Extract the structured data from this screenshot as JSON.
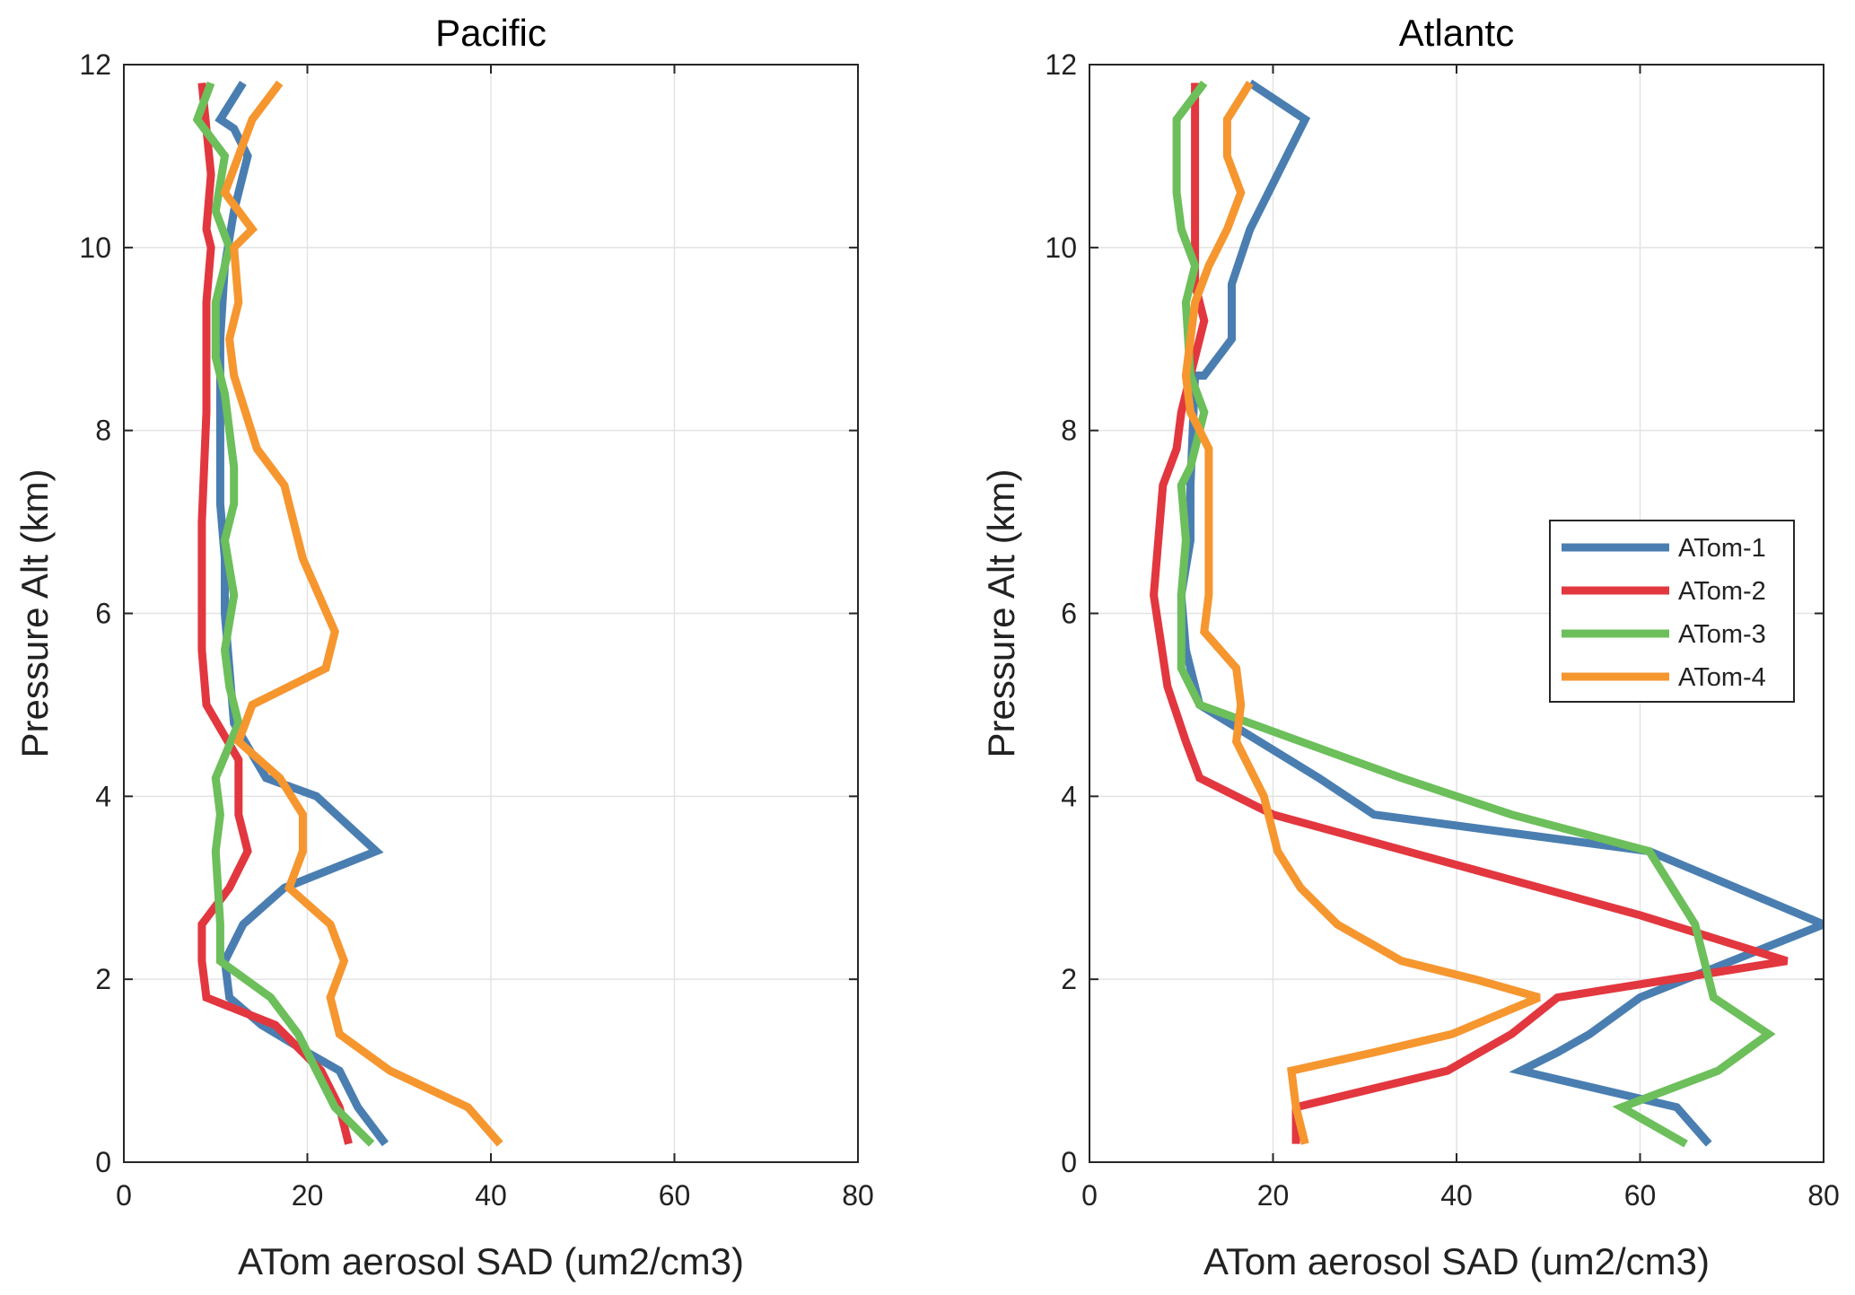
{
  "chart_data": [
    {
      "type": "line",
      "title": "Pacific",
      "xlabel": "ATom aerosol SAD (um2/cm3)",
      "ylabel": "Pressure Alt (km)",
      "xlim": [
        0,
        80
      ],
      "ylim": [
        0,
        12
      ],
      "xticks": [
        0,
        20,
        40,
        60,
        80
      ],
      "yticks": [
        0,
        2,
        4,
        6,
        8,
        10,
        12
      ],
      "grid": true,
      "series": [
        {
          "name": "ATom-1",
          "color": "#4a7eb1",
          "points": [
            [
              28.5,
              0.2
            ],
            [
              25.5,
              0.6
            ],
            [
              23.5,
              1.0
            ],
            [
              20,
              1.2
            ],
            [
              15,
              1.5
            ],
            [
              11.5,
              1.8
            ],
            [
              11,
              2.2
            ],
            [
              13,
              2.6
            ],
            [
              17.5,
              3.0
            ],
            [
              27.5,
              3.4
            ],
            [
              21,
              4.0
            ],
            [
              15.5,
              4.2
            ],
            [
              12,
              4.8
            ],
            [
              11.5,
              5.4
            ],
            [
              11,
              6.0
            ],
            [
              11,
              6.6
            ],
            [
              10.5,
              7.2
            ],
            [
              10.5,
              8.2
            ],
            [
              10.5,
              9.0
            ],
            [
              11,
              9.8
            ],
            [
              12,
              10.4
            ],
            [
              13.5,
              11.0
            ],
            [
              12,
              11.3
            ],
            [
              10.5,
              11.4
            ],
            [
              13,
              11.8
            ]
          ]
        },
        {
          "name": "ATom-2",
          "color": "#e2373f",
          "points": [
            [
              24.5,
              0.2
            ],
            [
              23.5,
              0.6
            ],
            [
              21.5,
              1.0
            ],
            [
              16.5,
              1.5
            ],
            [
              9,
              1.8
            ],
            [
              8.5,
              2.2
            ],
            [
              8.5,
              2.6
            ],
            [
              11.5,
              3.0
            ],
            [
              13.5,
              3.4
            ],
            [
              12.5,
              3.8
            ],
            [
              12.5,
              4.4
            ],
            [
              9,
              5.0
            ],
            [
              8.5,
              5.6
            ],
            [
              8.5,
              6.2
            ],
            [
              8.5,
              7.0
            ],
            [
              9,
              8.2
            ],
            [
              9,
              9.4
            ],
            [
              9.5,
              10.0
            ],
            [
              9,
              10.2
            ],
            [
              9.5,
              10.8
            ],
            [
              8.5,
              11.8
            ]
          ]
        },
        {
          "name": "ATom-3",
          "color": "#6cbf5a",
          "points": [
            [
              27,
              0.2
            ],
            [
              23,
              0.6
            ],
            [
              21,
              1.0
            ],
            [
              19,
              1.4
            ],
            [
              16,
              1.8
            ],
            [
              10.5,
              2.2
            ],
            [
              10.5,
              2.6
            ],
            [
              10,
              3.4
            ],
            [
              10.5,
              3.8
            ],
            [
              10,
              4.2
            ],
            [
              12.5,
              4.8
            ],
            [
              11.5,
              5.2
            ],
            [
              11,
              5.6
            ],
            [
              12,
              6.2
            ],
            [
              11,
              6.8
            ],
            [
              12,
              7.2
            ],
            [
              12,
              7.6
            ],
            [
              11,
              8.4
            ],
            [
              10,
              8.8
            ],
            [
              10,
              9.4
            ],
            [
              11,
              9.8
            ],
            [
              11.5,
              10.0
            ],
            [
              10,
              10.4
            ],
            [
              11,
              11.0
            ],
            [
              8,
              11.4
            ],
            [
              9.5,
              11.8
            ]
          ]
        },
        {
          "name": "ATom-4",
          "color": "#f6962f",
          "points": [
            [
              41,
              0.2
            ],
            [
              37.5,
              0.6
            ],
            [
              29,
              1.0
            ],
            [
              23.5,
              1.4
            ],
            [
              22.5,
              1.8
            ],
            [
              24,
              2.2
            ],
            [
              22.5,
              2.6
            ],
            [
              18,
              3.0
            ],
            [
              19.5,
              3.4
            ],
            [
              19.5,
              3.8
            ],
            [
              17,
              4.2
            ],
            [
              12.5,
              4.6
            ],
            [
              14,
              5.0
            ],
            [
              22,
              5.4
            ],
            [
              23,
              5.8
            ],
            [
              19.5,
              6.6
            ],
            [
              17.5,
              7.4
            ],
            [
              14.5,
              7.8
            ],
            [
              12,
              8.6
            ],
            [
              11.5,
              9.0
            ],
            [
              12.5,
              9.4
            ],
            [
              12,
              10.0
            ],
            [
              14,
              10.2
            ],
            [
              11,
              10.6
            ],
            [
              12.5,
              11.0
            ],
            [
              14,
              11.4
            ],
            [
              17,
              11.8
            ]
          ]
        }
      ]
    },
    {
      "type": "line",
      "title": "Atlantc",
      "xlabel": "ATom aerosol SAD (um2/cm3)",
      "ylabel": "Pressure Alt (km)",
      "xlim": [
        0,
        80
      ],
      "ylim": [
        0,
        12
      ],
      "xticks": [
        0,
        20,
        40,
        60,
        80
      ],
      "yticks": [
        0,
        2,
        4,
        6,
        8,
        10,
        12
      ],
      "grid": true,
      "legend": {
        "position": "right",
        "entries": [
          "ATom-1",
          "ATom-2",
          "ATom-3",
          "ATom-4"
        ]
      },
      "series": [
        {
          "name": "ATom-1",
          "color": "#4a7eb1",
          "points": [
            [
              67.5,
              0.2
            ],
            [
              64,
              0.6
            ],
            [
              47,
              1.0
            ],
            [
              51,
              1.2
            ],
            [
              54.5,
              1.4
            ],
            [
              60,
              1.8
            ],
            [
              80,
              2.6
            ],
            [
              61,
              3.4
            ],
            [
              31,
              3.8
            ],
            [
              25,
              4.2
            ],
            [
              12,
              5.0
            ],
            [
              10.5,
              5.6
            ],
            [
              10,
              6.2
            ],
            [
              11,
              6.8
            ],
            [
              11,
              7.4
            ],
            [
              11.5,
              8.6
            ],
            [
              12.5,
              8.6
            ],
            [
              15.5,
              9.0
            ],
            [
              15.5,
              9.6
            ],
            [
              17.5,
              10.2
            ],
            [
              19.5,
              10.6
            ],
            [
              21.5,
              11.0
            ],
            [
              23.5,
              11.4
            ],
            [
              17.5,
              11.8
            ]
          ]
        },
        {
          "name": "ATom-2",
          "color": "#e2373f",
          "points": [
            [
              22.5,
              0.2
            ],
            [
              22.5,
              0.6
            ],
            [
              39,
              1.0
            ],
            [
              46,
              1.4
            ],
            [
              51,
              1.8
            ],
            [
              76,
              2.2
            ],
            [
              60,
              2.7
            ],
            [
              20,
              3.8
            ],
            [
              12,
              4.2
            ],
            [
              10.5,
              4.6
            ],
            [
              8.5,
              5.2
            ],
            [
              7,
              6.2
            ],
            [
              8,
              7.4
            ],
            [
              9.5,
              7.8
            ],
            [
              10,
              8.2
            ],
            [
              11,
              8.6
            ],
            [
              12.5,
              9.2
            ],
            [
              11.5,
              9.6
            ],
            [
              11.5,
              10.2
            ],
            [
              11.5,
              11.8
            ]
          ]
        },
        {
          "name": "ATom-3",
          "color": "#6cbf5a",
          "points": [
            [
              65,
              0.2
            ],
            [
              58,
              0.6
            ],
            [
              68.5,
              1.0
            ],
            [
              74,
              1.4
            ],
            [
              68,
              1.8
            ],
            [
              66,
              2.6
            ],
            [
              61,
              3.4
            ],
            [
              46,
              3.8
            ],
            [
              34,
              4.2
            ],
            [
              23,
              4.6
            ],
            [
              12,
              5.0
            ],
            [
              10,
              5.4
            ],
            [
              10,
              6.2
            ],
            [
              10.5,
              6.8
            ],
            [
              10,
              7.4
            ],
            [
              11,
              7.6
            ],
            [
              12.5,
              8.2
            ],
            [
              11,
              8.6
            ],
            [
              10.5,
              9.4
            ],
            [
              11.5,
              9.8
            ],
            [
              10,
              10.2
            ],
            [
              9.5,
              10.6
            ],
            [
              9.5,
              11.4
            ],
            [
              12.5,
              11.8
            ]
          ]
        },
        {
          "name": "ATom-4",
          "color": "#f6962f",
          "points": [
            [
              23.5,
              0.2
            ],
            [
              22.5,
              0.6
            ],
            [
              22,
              1.0
            ],
            [
              31,
              1.2
            ],
            [
              39.5,
              1.4
            ],
            [
              49,
              1.8
            ],
            [
              42,
              2.0
            ],
            [
              34,
              2.2
            ],
            [
              27,
              2.6
            ],
            [
              23,
              3.0
            ],
            [
              20.5,
              3.4
            ],
            [
              19,
              4.0
            ],
            [
              16,
              4.6
            ],
            [
              16.5,
              5.0
            ],
            [
              16,
              5.4
            ],
            [
              12.5,
              5.8
            ],
            [
              13,
              6.2
            ],
            [
              13,
              7.8
            ],
            [
              11,
              8.2
            ],
            [
              10.5,
              8.6
            ],
            [
              11,
              9.0
            ],
            [
              11.5,
              9.4
            ],
            [
              13,
              9.8
            ],
            [
              15,
              10.2
            ],
            [
              16.5,
              10.6
            ],
            [
              15,
              11.0
            ],
            [
              15,
              11.4
            ],
            [
              17.5,
              11.8
            ]
          ]
        }
      ]
    }
  ]
}
